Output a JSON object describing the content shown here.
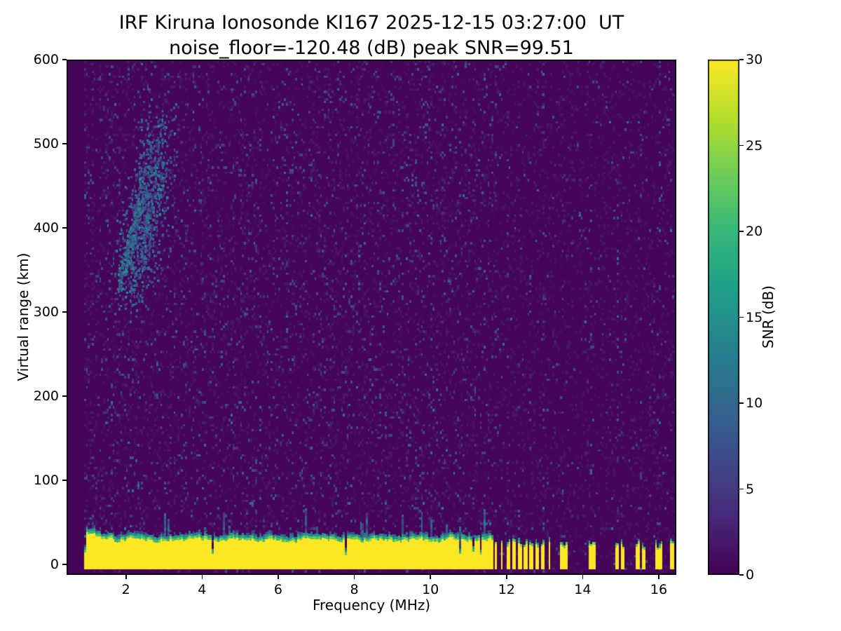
{
  "figure": {
    "background": "#ffffff",
    "text_color": "#000000"
  },
  "chart_data": {
    "type": "heatmap",
    "title": "IRF Kiruna Ionosonde KI167 2025-12-15 03:27:00  UT",
    "subtitle": "noise_floor=-120.48 (dB) peak SNR=99.51",
    "observatory": "IRF Kiruna Ionosonde",
    "station": "KI167",
    "timestamp_ut": "2025-12-15 03:27:00 UT",
    "noise_floor_db": -120.48,
    "peak_snr_db": 99.51,
    "xlabel": "Frequency (MHz)",
    "ylabel": "Virtual range (km)",
    "colorbar_label": "SNR (dB)",
    "colormap": "viridis",
    "grid": false,
    "xlim": [
      0.44,
      16.46
    ],
    "ylim": [
      -12.5,
      600
    ],
    "clim": [
      0,
      30
    ],
    "x_ticks": [
      2,
      4,
      6,
      8,
      10,
      12,
      14,
      16
    ],
    "y_ticks": [
      0,
      100,
      200,
      300,
      400,
      500,
      600
    ],
    "colorbar_ticks": [
      0,
      5,
      10,
      15,
      20,
      25,
      30
    ],
    "colors": {
      "colormap_low": "#440154",
      "colormap_high": "#fde725",
      "spine": "#000000"
    },
    "features": {
      "data_freq_range_mhz": [
        0.9,
        16.42
      ],
      "ground_clutter_band": {
        "note": "saturated yellow band of strong near-range echoes with ragged green/teal upper edge",
        "freq_mhz": [
          0.9,
          16.4
        ],
        "range_km": [
          -6,
          34
        ],
        "snr_db": 30,
        "taller_below_mhz": 1.3,
        "intermittent_region": {
          "start_mhz": 11.62,
          "end_mhz": 13.15,
          "bar_period_mhz": 0.155,
          "bar_width_mhz": 0.085
        },
        "isolated_bar_centers_mhz": [
          13.44,
          13.56,
          14.18,
          14.31,
          14.9,
          15.03,
          15.45,
          15.58,
          15.93,
          16.06,
          16.33
        ]
      },
      "ionospheric_echo_trace": {
        "note": "diffuse spread-F echo trace",
        "freq_mhz": [
          1.7,
          3.35
        ],
        "range_km": [
          300,
          545
        ],
        "snr_db": [
          5,
          15
        ]
      },
      "background_noise": {
        "note": "speckled receiver/galactic noise, sparser above 11.6 MHz",
        "snr_db": [
          0,
          8
        ],
        "sparser_above_mhz": 11.62
      },
      "interference_stripe_freqs_mhz": [
        11.72,
        12.02,
        12.32,
        12.62,
        12.95,
        13.45,
        14.2,
        14.9,
        15.5,
        16.0
      ]
    }
  }
}
